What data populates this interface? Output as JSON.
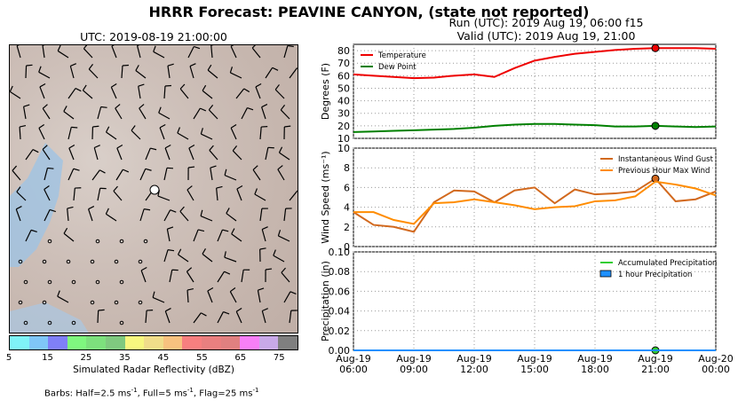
{
  "header": {
    "title": "HRRR Forecast: PEAVINE CANYON, (state not reported)",
    "run": "Run (UTC): 2019 Aug 19, 06:00 f15",
    "valid": "Valid (UTC): 2019 Aug 19, 21:00"
  },
  "map": {
    "title": "UTC: 2019-08-19 21:00:00",
    "colorbar_label": "Simulated Radar Reflectivity (dBZ)",
    "colorbar_ticks": [
      "5",
      "15",
      "25",
      "35",
      "45",
      "55",
      "65",
      "75"
    ],
    "colorbar_colors": [
      "#7ff3f7",
      "#7fc6f7",
      "#7f7ff7",
      "#7ff77f",
      "#7de07d",
      "#7fc97f",
      "#f7f77f",
      "#f0dd8a",
      "#f7c27f",
      "#f77f7f",
      "#e97f7f",
      "#e08080",
      "#f77ff7",
      "#c8a9e8",
      "#7f7f7f"
    ],
    "barbs_note": "Barbs: Half=2.5 ms",
    "barbs_note_sup1": "-1",
    "barbs_note_mid": ", Full=5 ms",
    "barbs_note_sup2": "-1",
    "barbs_note_mid2": ", Flag=25 ms",
    "barbs_note_sup3": "-1"
  },
  "chart_data": [
    {
      "type": "line",
      "ylabel": "Degrees (F)",
      "ylim": [
        10,
        85
      ],
      "yticks": [
        "10",
        "20",
        "30",
        "40",
        "50",
        "60",
        "70",
        "80"
      ],
      "x": [
        "06:00",
        "07:00",
        "08:00",
        "09:00",
        "10:00",
        "11:00",
        "12:00",
        "13:00",
        "14:00",
        "15:00",
        "16:00",
        "17:00",
        "18:00",
        "19:00",
        "20:00",
        "21:00",
        "22:00",
        "23:00",
        "00:00"
      ],
      "series": [
        {
          "name": "Temperature",
          "color": "#ee0000",
          "values": [
            61,
            60,
            59,
            58,
            58.5,
            60,
            61,
            59,
            66,
            72,
            75,
            77.5,
            79,
            80.5,
            81.5,
            82,
            82,
            82,
            81.5
          ]
        },
        {
          "name": "Dew Point",
          "color": "#008000",
          "values": [
            15,
            15.5,
            16,
            16.5,
            17,
            17.5,
            18.5,
            20,
            21,
            21.5,
            21.5,
            21,
            20.5,
            19.5,
            19.5,
            20,
            19.5,
            19,
            19.5
          ]
        }
      ],
      "legend": "top-left",
      "grid": true
    },
    {
      "type": "line",
      "ylabel": "Wind Speed (ms⁻¹)",
      "ylim": [
        0,
        10
      ],
      "yticks": [
        "0",
        "2",
        "4",
        "6",
        "8",
        "10"
      ],
      "x": [
        "06:00",
        "07:00",
        "08:00",
        "09:00",
        "10:00",
        "11:00",
        "12:00",
        "13:00",
        "14:00",
        "15:00",
        "16:00",
        "17:00",
        "18:00",
        "19:00",
        "20:00",
        "21:00",
        "22:00",
        "23:00",
        "00:00"
      ],
      "series": [
        {
          "name": "Instantaneous Wind Gust",
          "color": "#d2691e",
          "values": [
            3.5,
            2.2,
            2.0,
            1.5,
            4.5,
            5.7,
            5.6,
            4.5,
            5.7,
            6.0,
            4.4,
            5.8,
            5.3,
            5.4,
            5.6,
            6.9,
            4.6,
            4.8,
            5.6
          ]
        },
        {
          "name": "Previous Hour Max Wind",
          "color": "#ff8c00",
          "values": [
            3.5,
            3.5,
            2.7,
            2.3,
            4.4,
            4.5,
            4.8,
            4.5,
            4.2,
            3.8,
            4.0,
            4.1,
            4.6,
            4.7,
            5.1,
            6.6,
            6.3,
            5.9,
            5.2
          ]
        }
      ],
      "legend": "top-right",
      "grid": true
    },
    {
      "type": "line",
      "ylabel": "Precipitation (in)",
      "ylim": [
        0,
        0.1
      ],
      "yticks": [
        "0.00",
        "0.02",
        "0.04",
        "0.06",
        "0.08",
        "0.10"
      ],
      "xticks": [
        [
          "Aug-19",
          "06:00"
        ],
        [
          "Aug-19",
          "09:00"
        ],
        [
          "Aug-19",
          "12:00"
        ],
        [
          "Aug-19",
          "15:00"
        ],
        [
          "Aug-19",
          "18:00"
        ],
        [
          "Aug-19",
          "21:00"
        ],
        [
          "Aug-20",
          "00:00"
        ]
      ],
      "series": [
        {
          "name": "Accumulated Precipitation",
          "color": "#32cd32",
          "values": [
            0,
            0,
            0,
            0,
            0,
            0,
            0,
            0,
            0,
            0,
            0,
            0,
            0,
            0,
            0,
            0,
            0,
            0,
            0
          ]
        },
        {
          "name": "1 hour Precipitation",
          "color": "#1e90ff",
          "values": [
            0,
            0,
            0,
            0,
            0,
            0,
            0,
            0,
            0,
            0,
            0,
            0,
            0,
            0,
            0,
            0,
            0,
            0,
            0
          ]
        }
      ],
      "legend": "top-right",
      "grid": true
    }
  ]
}
